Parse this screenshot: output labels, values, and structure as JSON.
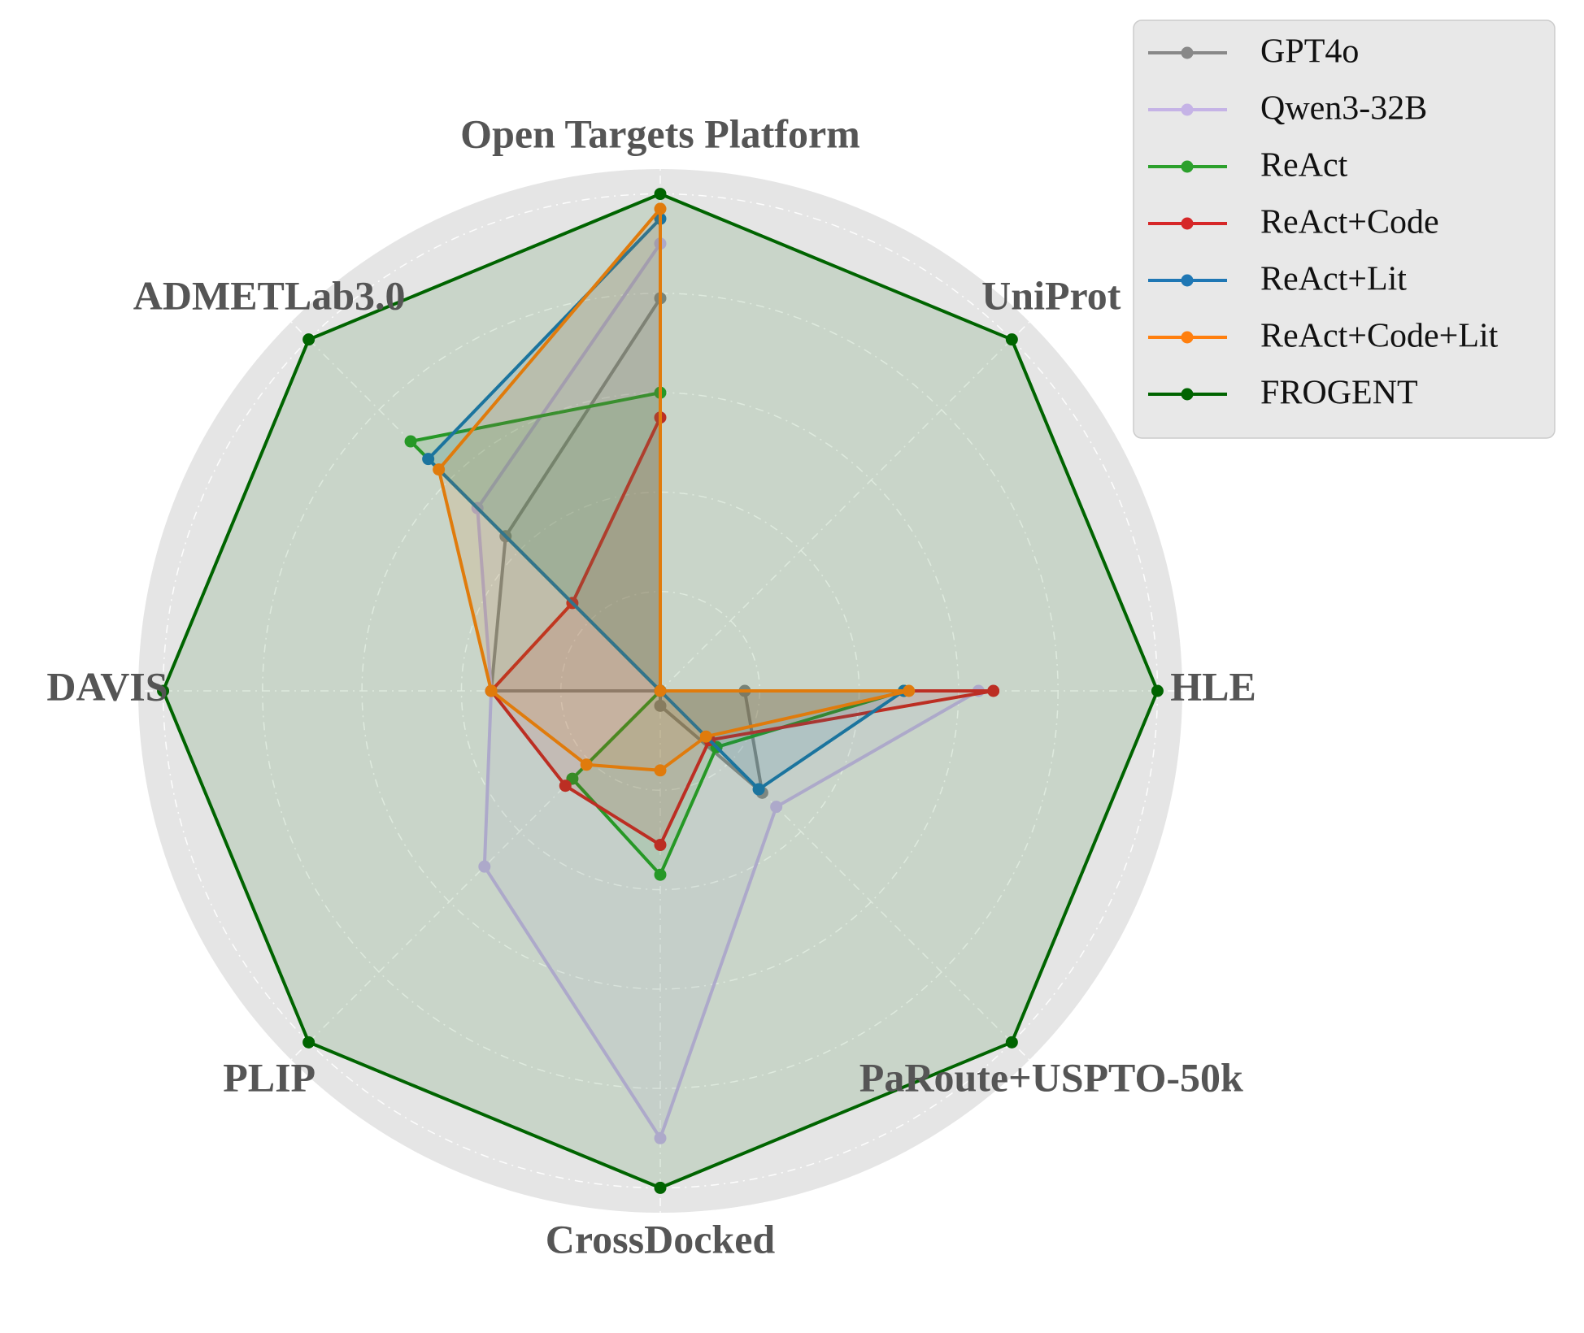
{
  "chart_data": {
    "type": "radar",
    "categories": [
      "Open Targets Platform",
      "UniProt",
      "HLE",
      "PaRoute+USPTO-50k",
      "CrossDocked",
      "PLIP",
      "DAVIS",
      "ADMETLab3.0"
    ],
    "ylim": [
      0,
      1.05
    ],
    "yticks": [
      0.2,
      0.4,
      0.6,
      0.8,
      1.0
    ],
    "grid": true,
    "legend": "upper right",
    "series": [
      {
        "name": "GPT4o",
        "color": "#888888",
        "values": [
          0.79,
          0,
          0.17,
          0.29,
          0.03,
          0,
          0.34,
          0.44
        ]
      },
      {
        "name": "Qwen3-32B",
        "color": "#c5b3e6",
        "values": [
          0.9,
          0,
          0.64,
          0.33,
          0.9,
          0.5,
          0.34,
          0.52
        ]
      },
      {
        "name": "ReAct",
        "color": "#2ca02c",
        "values": [
          0.6,
          0,
          0.49,
          0.16,
          0.37,
          0.25,
          0,
          0.71
        ]
      },
      {
        "name": "ReAct+Code",
        "color": "#d62728",
        "values": [
          0.55,
          0,
          0.67,
          0.14,
          0.31,
          0.27,
          0.34,
          0.25
        ]
      },
      {
        "name": "ReAct+Lit",
        "color": "#1f77b4",
        "values": [
          0.95,
          0,
          0.49,
          0.28,
          0,
          0,
          0,
          0.66
        ]
      },
      {
        "name": "ReAct+Code+Lit",
        "color": "#ff7f0e",
        "values": [
          0.97,
          0,
          0.5,
          0.13,
          0.16,
          0.21,
          0.34,
          0.63
        ]
      },
      {
        "name": "FROGENT",
        "color": "#006400",
        "values": [
          1,
          1,
          1,
          1,
          1,
          1,
          1,
          1
        ]
      }
    ]
  }
}
